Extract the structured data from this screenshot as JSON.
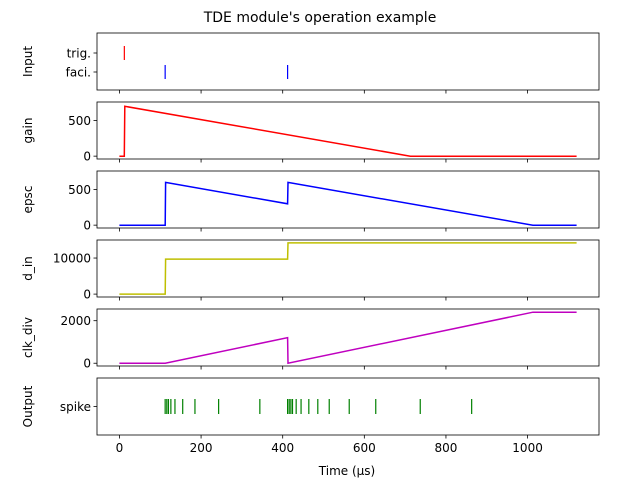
{
  "title": "TDE module's operation example",
  "xlabel": "Time (μs)",
  "xticks": [
    0,
    200,
    400,
    600,
    800,
    1000
  ],
  "xlim": [
    -55,
    1175
  ],
  "chart_data": [
    {
      "type": "event",
      "ylabel": "Input",
      "categories": [
        "trig.",
        "faci."
      ],
      "series": [
        {
          "category": "trig.",
          "color": "#ff0000",
          "x": [
            12
          ]
        },
        {
          "category": "faci.",
          "color": "#0000ff",
          "x": [
            112,
            412
          ]
        }
      ]
    },
    {
      "type": "line",
      "ylabel": "gain",
      "ylim": [
        -40,
        760
      ],
      "yticks": [
        0,
        500
      ],
      "color": "#ff0000",
      "x": [
        0,
        12,
        13,
        713,
        1120
      ],
      "y": [
        0,
        0,
        700,
        0,
        0
      ]
    },
    {
      "type": "line",
      "ylabel": "epsc",
      "ylim": [
        -40,
        760
      ],
      "yticks": [
        0,
        500
      ],
      "color": "#0000ff",
      "x": [
        0,
        112,
        113,
        412,
        413,
        1013,
        1120
      ],
      "y": [
        0,
        0,
        600,
        300,
        600,
        0,
        0
      ]
    },
    {
      "type": "line",
      "ylabel": "d_in",
      "ylim": [
        -800,
        15000
      ],
      "yticks": [
        0,
        10000
      ],
      "color": "#bfbf00",
      "x": [
        0,
        112,
        113,
        412,
        413,
        1120
      ],
      "y": [
        0,
        0,
        9700,
        9700,
        14200,
        14200
      ]
    },
    {
      "type": "line",
      "ylabel": "clk_div",
      "ylim": [
        -130,
        2550
      ],
      "yticks": [
        0,
        2000
      ],
      "color": "#bf00bf",
      "x": [
        0,
        112,
        412,
        413,
        1013,
        1120
      ],
      "y": [
        0,
        0,
        1200,
        0,
        2400,
        2400
      ]
    },
    {
      "type": "event",
      "ylabel": "Output",
      "categories": [
        "spike"
      ],
      "series": [
        {
          "category": "spike",
          "color": "#008000",
          "x": [
            112,
            116,
            120,
            126,
            136,
            155,
            185,
            243,
            344,
            412,
            416,
            420,
            424,
            433,
            445,
            464,
            486,
            514,
            563,
            628,
            737,
            863
          ]
        }
      ]
    }
  ]
}
